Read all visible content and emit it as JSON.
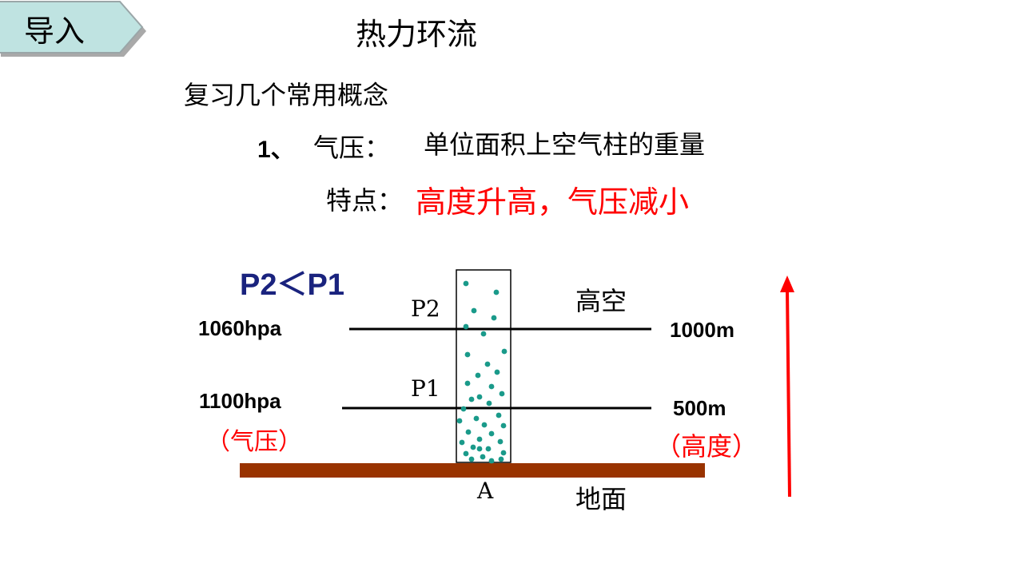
{
  "header": {
    "tag_label": "导入",
    "title": "热力环流"
  },
  "content": {
    "review_heading": "复习几个常用概念",
    "definition": {
      "number": "1、",
      "term": "气压：",
      "text": "单位面积上空气柱的重量"
    },
    "feature": {
      "label": "特点：",
      "text": "高度升高，气压减小",
      "color": "#ff0000"
    }
  },
  "diagram": {
    "comparison": "P2＜P1",
    "upper_level": {
      "point": "P2",
      "pressure": "1060hpa",
      "altitude": "1000m",
      "zone": "高空"
    },
    "lower_level": {
      "point": "P1",
      "pressure": "1100hpa",
      "altitude": "500m"
    },
    "pressure_caption": "（气压）",
    "altitude_caption": "（高度）",
    "ground_label": "地面",
    "column_label": "A",
    "colors": {
      "ground": "#993300",
      "dots": "#1a9a8a",
      "arrow": "#ff0000",
      "caption": "#ff0000"
    }
  }
}
